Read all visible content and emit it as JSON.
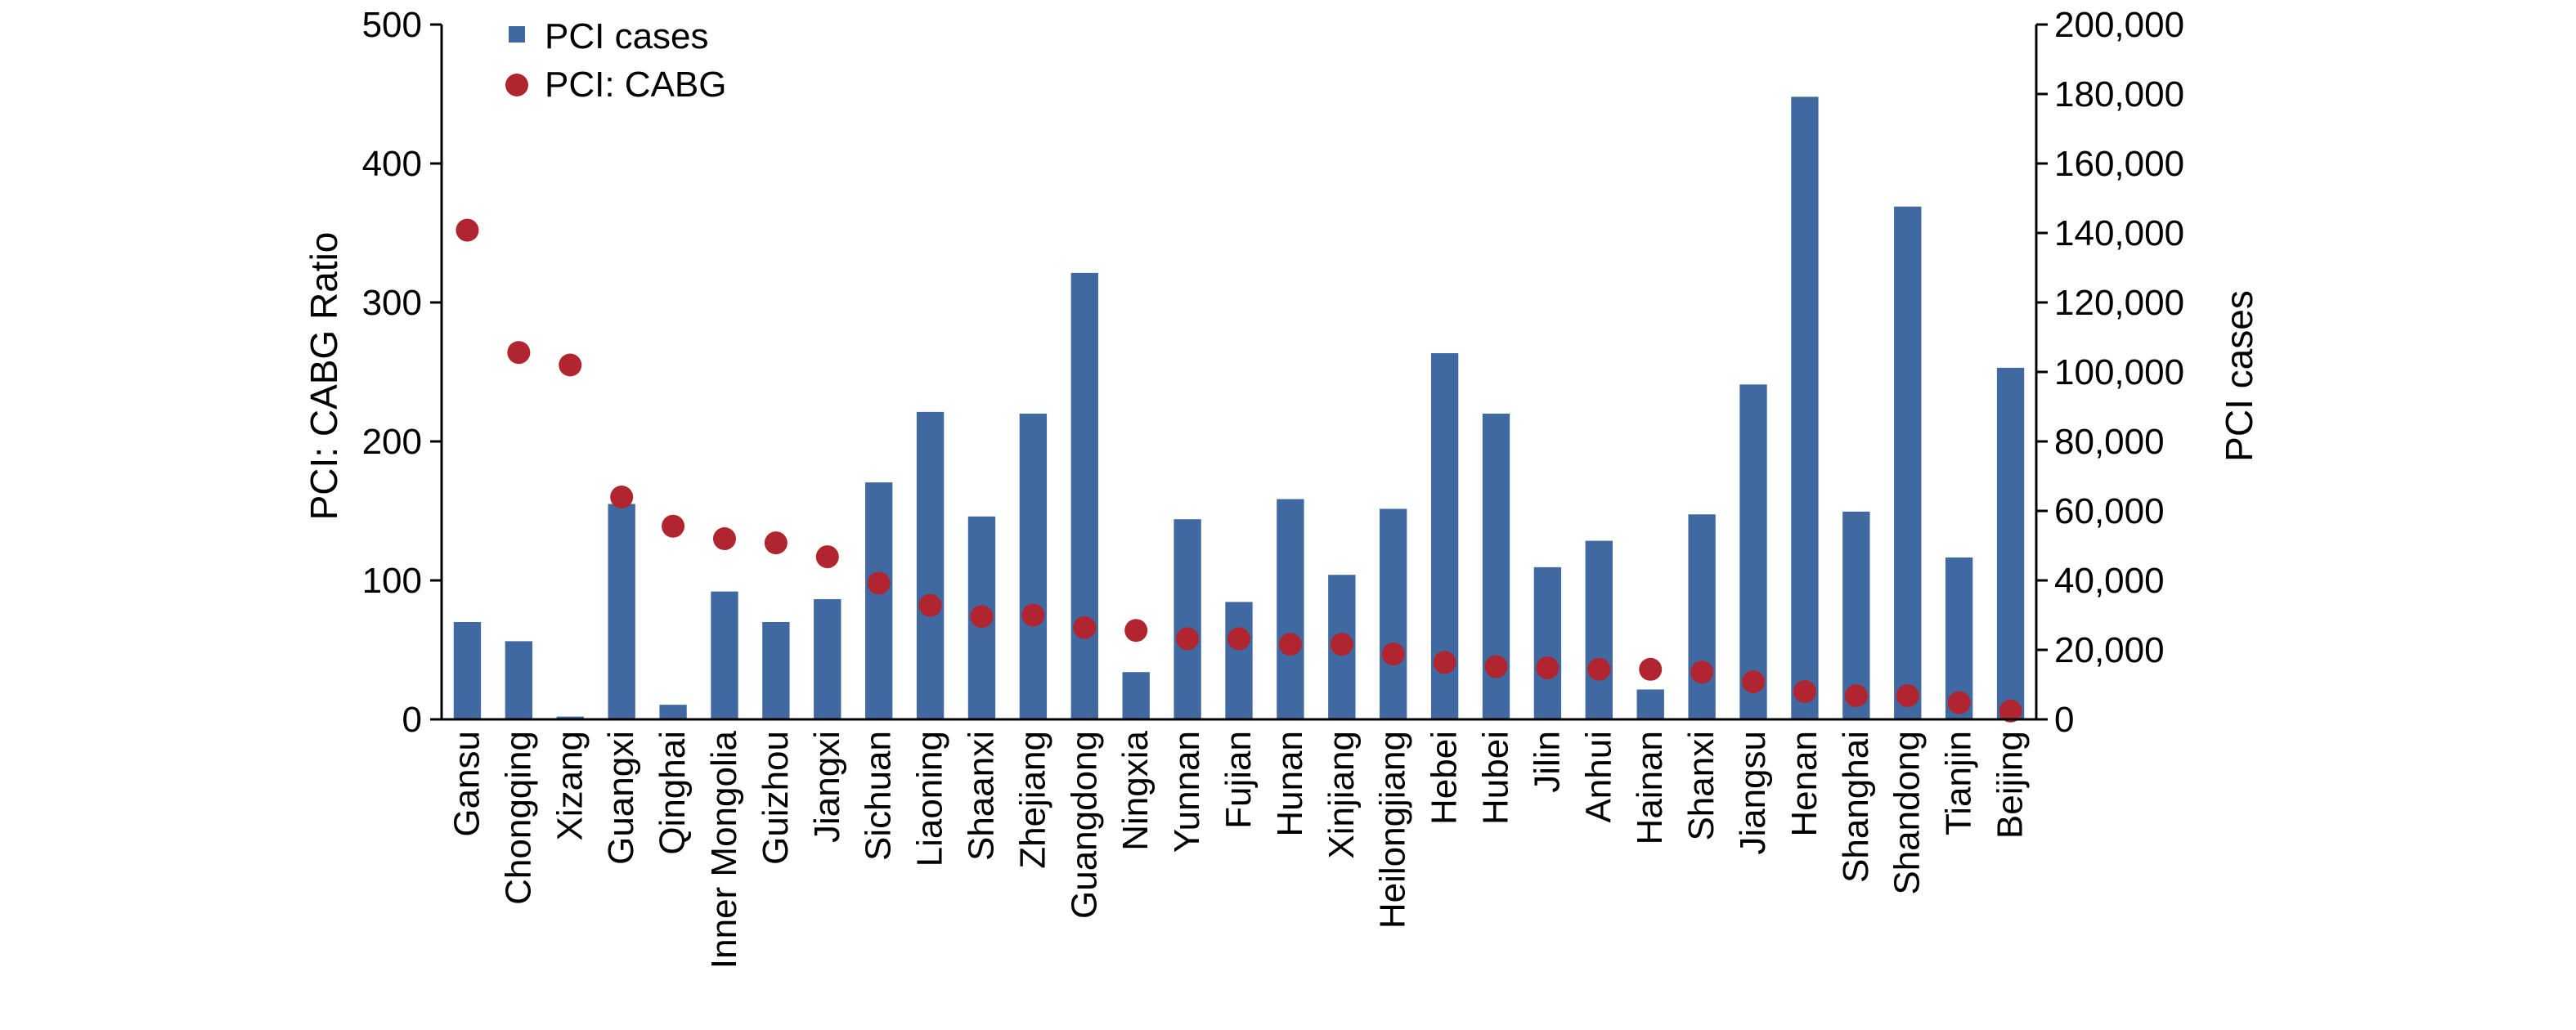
{
  "chart_data": {
    "type": "bar",
    "categories": [
      "Gansu",
      "Chongqing",
      "Xizang",
      "Guangxi",
      "Qinghai",
      "Inner Mongolia",
      "Guizhou",
      "Jiangxi",
      "Sichuan",
      "Liaoning",
      "Shaanxi",
      "Zhejiang",
      "Guangdong",
      "Ningxia",
      "Yunnan",
      "Fujian",
      "Hunan",
      "Xinjiang",
      "Heilongjiang",
      "Hebei",
      "Hubei",
      "Jilin",
      "Anhui",
      "Hainan",
      "Shanxi",
      "Jiangsu",
      "Henan",
      "Shanghai",
      "Shandong",
      "Tianjin",
      "Beijing"
    ],
    "series": [
      {
        "name": "PCI cases",
        "type": "bar",
        "axis": "right",
        "color": "#4169A1",
        "values": [
          28000,
          22500,
          800,
          62000,
          4200,
          36800,
          28000,
          34600,
          68200,
          88500,
          58400,
          88000,
          128500,
          13600,
          57600,
          33800,
          63400,
          41600,
          60600,
          105400,
          88000,
          43800,
          51400,
          8600,
          59000,
          96400,
          179200,
          59800,
          147600,
          46600,
          101200
        ]
      },
      {
        "name": "PCI: CABG",
        "type": "scatter",
        "axis": "left",
        "color": "#B0252F",
        "values": [
          352,
          264,
          255,
          160,
          139,
          130,
          127,
          117,
          98,
          82,
          74,
          75,
          66,
          64,
          58,
          58,
          54,
          54,
          47,
          41,
          38,
          37,
          36,
          36,
          34,
          27,
          20,
          17,
          17,
          12,
          6
        ]
      }
    ],
    "y_left": {
      "label": "PCI: CABG Ratio",
      "min": 0,
      "max": 500,
      "ticks": [
        "0",
        "100",
        "200",
        "300",
        "400",
        "500"
      ]
    },
    "y_right": {
      "label": "PCI cases",
      "min": 0,
      "max": 200000,
      "ticks": [
        "0",
        "20,000",
        "40,000",
        "60,000",
        "80,000",
        "100,000",
        "120,000",
        "140,000",
        "160,000",
        "180,000",
        "200,000"
      ]
    },
    "legend": {
      "placement": "top-left",
      "items": [
        "PCI cases",
        "PCI: CABG"
      ]
    },
    "grid": false
  }
}
